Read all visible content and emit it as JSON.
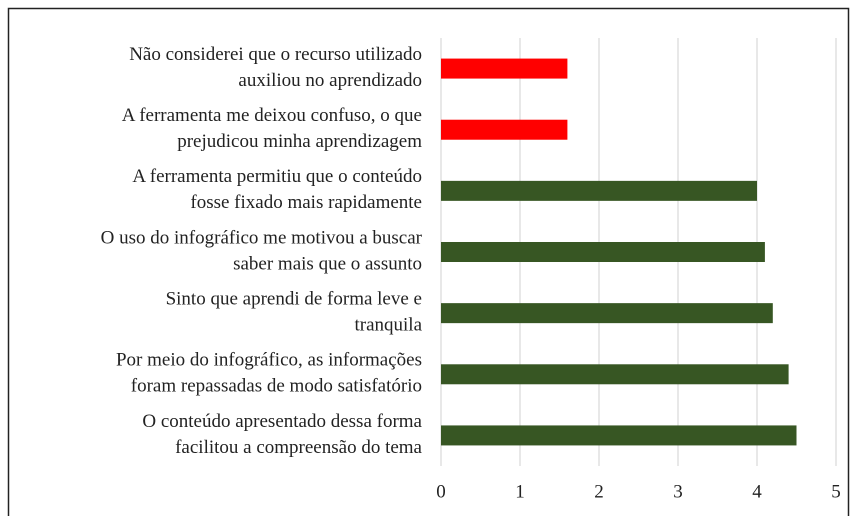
{
  "chart_data": {
    "type": "barh",
    "categories": [
      [
        "Não considerei que o recurso utilizado",
        "auxiliou no aprendizado"
      ],
      [
        "A ferramenta me deixou confuso, o que",
        "prejudicou minha aprendizagem"
      ],
      [
        "A ferramenta permitiu que o conteúdo",
        "fosse fixado mais rapidamente"
      ],
      [
        "O uso do infográfico me motivou a buscar",
        "saber mais que o assunto"
      ],
      [
        "Sinto que aprendi de forma leve e",
        "tranquila"
      ],
      [
        "Por meio do infográfico, as informações",
        "foram repassadas de modo satisfatório"
      ],
      [
        "O conteúdo apresentado dessa forma",
        "facilitou a compreensão do tema"
      ]
    ],
    "values": [
      1.6,
      1.6,
      4.0,
      4.1,
      4.2,
      4.4,
      4.5
    ],
    "colors": [
      "#ff0000",
      "#ff0000",
      "#375623",
      "#375623",
      "#375623",
      "#375623",
      "#375623"
    ],
    "xlim": [
      0,
      5
    ],
    "xticks": [
      0,
      1,
      2,
      3,
      4,
      5
    ],
    "grid": true
  }
}
